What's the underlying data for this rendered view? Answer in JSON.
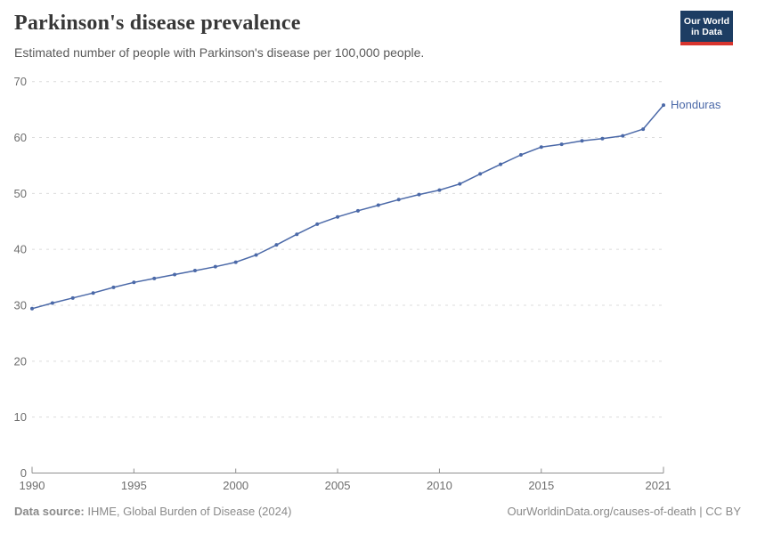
{
  "header": {
    "title": "Parkinson's disease prevalence",
    "subtitle": "Estimated number of people with Parkinson's disease per 100,000 people.",
    "logo": {
      "line1": "Our World",
      "line2": "in Data",
      "bg_color": "#1d3d63",
      "accent_color": "#d8352e"
    }
  },
  "chart_data": {
    "type": "line",
    "title": "Parkinson's disease prevalence",
    "subtitle": "Estimated number of people with Parkinson's disease per 100,000 people.",
    "xlabel": "",
    "ylabel": "",
    "x": [
      1990,
      1991,
      1992,
      1993,
      1994,
      1995,
      1996,
      1997,
      1998,
      1999,
      2000,
      2001,
      2002,
      2003,
      2004,
      2005,
      2006,
      2007,
      2008,
      2009,
      2010,
      2011,
      2012,
      2013,
      2014,
      2015,
      2016,
      2017,
      2018,
      2019,
      2020,
      2021
    ],
    "series": [
      {
        "name": "Honduras",
        "color": "#4b69a8",
        "values": [
          29.4,
          30.4,
          31.3,
          32.2,
          33.2,
          34.1,
          34.8,
          35.5,
          36.2,
          36.9,
          37.7,
          39.0,
          40.8,
          42.7,
          44.5,
          45.8,
          46.9,
          47.9,
          48.9,
          49.8,
          50.6,
          51.7,
          53.5,
          55.2,
          56.9,
          58.3,
          58.8,
          59.4,
          59.8,
          60.3,
          61.5,
          65.8
        ]
      }
    ],
    "end_label": "Honduras",
    "x_ticks": [
      1990,
      1995,
      2000,
      2005,
      2010,
      2015,
      2021
    ],
    "y_ticks": [
      0,
      10,
      20,
      30,
      40,
      50,
      60,
      70
    ],
    "xlim": [
      1990,
      2021
    ],
    "ylim": [
      0,
      70
    ],
    "grid": "horizontal-dashed",
    "legend_position": "end-of-line",
    "colors": {
      "grid": "#dcdcdc",
      "axis": "#8f8f8f",
      "tick_label": "#6e6e6e"
    }
  },
  "footer": {
    "source_label": "Data source:",
    "source_text": " IHME, Global Burden of Disease (2024)",
    "attribution": "OurWorldinData.org/causes-of-death | CC BY"
  }
}
